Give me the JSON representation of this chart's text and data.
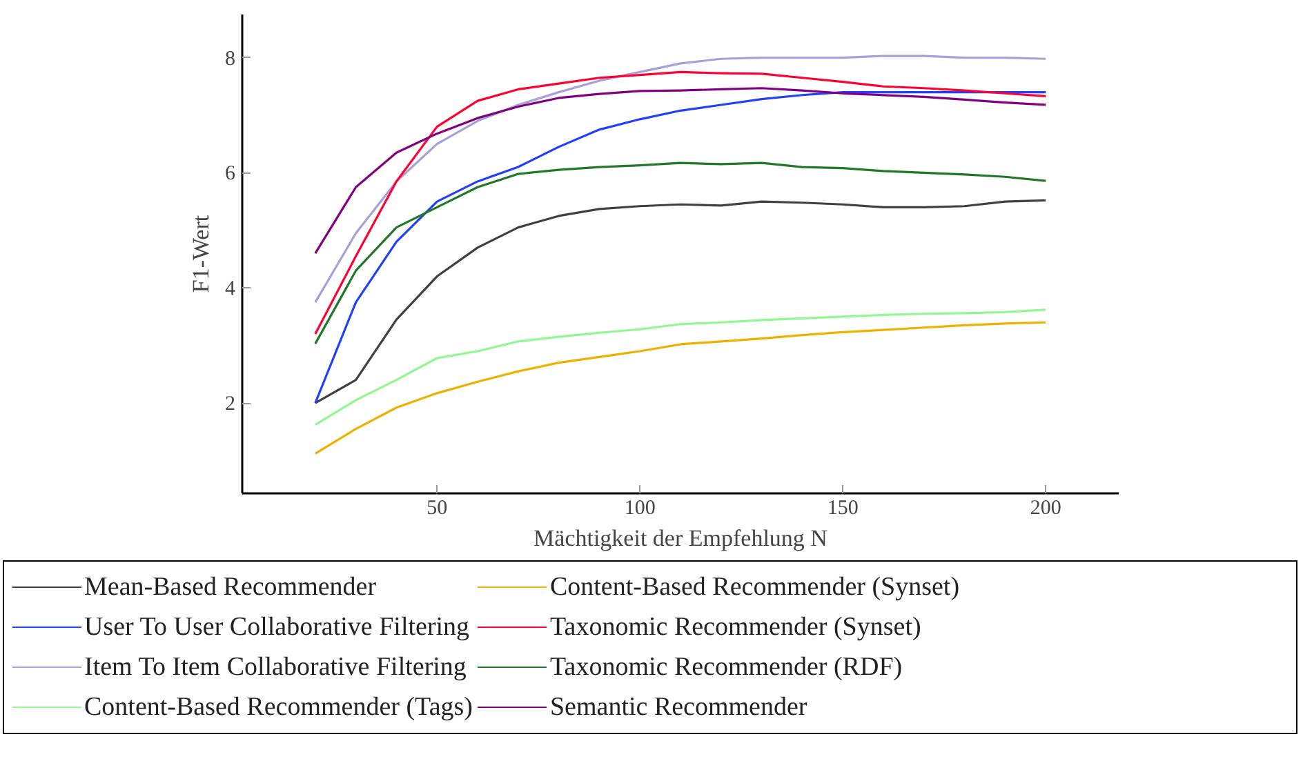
{
  "chart_data": {
    "type": "line",
    "xlabel": "Mächtigkeit der Empfehlung N",
    "ylabel": "F1-Wert",
    "x": [
      20,
      30,
      40,
      50,
      60,
      70,
      80,
      90,
      100,
      110,
      120,
      130,
      140,
      150,
      160,
      170,
      180,
      190,
      200
    ],
    "xlim": [
      2,
      218
    ],
    "xticks": [
      50,
      100,
      150,
      200
    ],
    "ylim": [
      0.43,
      8.75
    ],
    "yticks": [
      2,
      4,
      6,
      8
    ],
    "grid": false,
    "legend": "bottom",
    "marker": "none",
    "line_style": "solid",
    "series": [
      {
        "name": "Mean-Based Recommender",
        "color": "#404040",
        "values": [
          2.0,
          2.4,
          3.45,
          4.2,
          4.7,
          5.05,
          5.25,
          5.37,
          5.42,
          5.45,
          5.43,
          5.5,
          5.48,
          5.45,
          5.4,
          5.4,
          5.42,
          5.5,
          5.52
        ]
      },
      {
        "name": "User To User Collaborative Filtering",
        "color": "#2040ff",
        "values": [
          2.0,
          3.75,
          4.8,
          5.5,
          5.85,
          6.1,
          6.45,
          6.75,
          6.93,
          7.08,
          7.18,
          7.28,
          7.35,
          7.4,
          7.4,
          7.4,
          7.4,
          7.4,
          7.4
        ]
      },
      {
        "name": "Item To Item Collaborative Filtering",
        "color": "#a8a0d8",
        "values": [
          3.75,
          4.95,
          5.85,
          6.5,
          6.9,
          7.18,
          7.4,
          7.6,
          7.75,
          7.9,
          7.98,
          8.0,
          8.0,
          8.0,
          8.03,
          8.03,
          8.0,
          8.0,
          7.98
        ]
      },
      {
        "name": "Content-Based Recommender (Tags)",
        "color": "#90f890",
        "values": [
          1.62,
          2.05,
          2.4,
          2.78,
          2.9,
          3.07,
          3.15,
          3.22,
          3.28,
          3.37,
          3.4,
          3.44,
          3.47,
          3.5,
          3.53,
          3.55,
          3.56,
          3.58,
          3.62
        ]
      },
      {
        "name": "Content-Based Recommender (Synset)",
        "color": "#f0b000",
        "values": [
          1.12,
          1.55,
          1.92,
          2.17,
          2.37,
          2.55,
          2.7,
          2.8,
          2.9,
          3.02,
          3.07,
          3.12,
          3.18,
          3.23,
          3.27,
          3.31,
          3.35,
          3.38,
          3.4
        ]
      },
      {
        "name": "Taxonomic Recommender (Synset)",
        "color": "#ff0030",
        "values": [
          3.2,
          4.55,
          5.85,
          6.8,
          7.25,
          7.45,
          7.55,
          7.65,
          7.7,
          7.75,
          7.73,
          7.72,
          7.65,
          7.58,
          7.5,
          7.47,
          7.43,
          7.38,
          7.33
        ]
      },
      {
        "name": "Taxonomic Recommender (RDF)",
        "color": "#207828",
        "values": [
          3.03,
          4.3,
          5.05,
          5.4,
          5.75,
          5.98,
          6.05,
          6.1,
          6.13,
          6.17,
          6.15,
          6.17,
          6.1,
          6.08,
          6.03,
          6.0,
          5.97,
          5.93,
          5.86
        ]
      },
      {
        "name": "Semantic Recommender",
        "color": "#800080",
        "values": [
          4.6,
          5.75,
          6.35,
          6.68,
          6.95,
          7.15,
          7.3,
          7.37,
          7.42,
          7.43,
          7.45,
          7.47,
          7.43,
          7.38,
          7.35,
          7.32,
          7.27,
          7.22,
          7.18
        ]
      }
    ]
  }
}
